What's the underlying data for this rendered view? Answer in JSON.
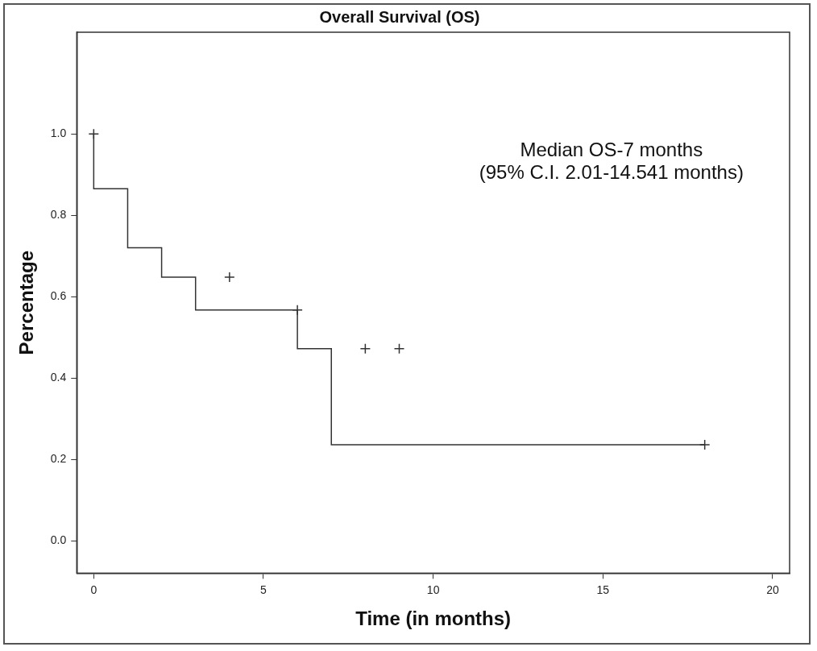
{
  "chart_data": {
    "type": "line",
    "title": "Overall Survival (OS)",
    "x_label": "Time (in months)",
    "y_label": "Percentage",
    "annotations": [
      "Median OS-7 months",
      "(95% C.I. 2.01-14.541 months)"
    ],
    "series": [
      {
        "type": "line",
        "x": [
          0,
          0,
          1,
          2,
          3,
          6,
          7,
          15,
          18
        ],
        "values": [
          1.0,
          0.935,
          0.865,
          0.72,
          0.648,
          0.567,
          0.472,
          0.236,
          0.236
        ],
        "color": "#333333",
        "line_style": "steps",
        "marker": "none"
      },
      {
        "type": "scatter",
        "x": [
          0,
          4,
          6,
          8,
          9,
          18
        ],
        "values": [
          1.0,
          0.648,
          0.567,
          0.472,
          0.472,
          0.236
        ],
        "color": "#333333",
        "marker": "plus"
      }
    ],
    "xlim": [
      -0.5,
      20.5
    ],
    "xticks": [
      0,
      5,
      10,
      15,
      20
    ],
    "ylim": [
      -0.08,
      1.25
    ],
    "yticks": [
      {
        "value": 0,
        "label": "0.0"
      },
      0.2,
      0.4,
      0.6,
      0.8,
      {
        "value": 1,
        "label": "1.0"
      }
    ],
    "grid": false
  }
}
